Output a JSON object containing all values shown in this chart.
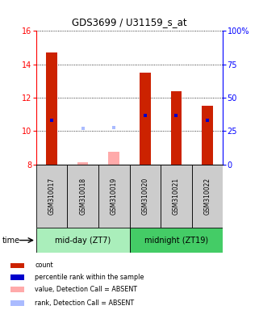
{
  "title": "GDS3699 / U31159_s_at",
  "samples": [
    "GSM310017",
    "GSM310018",
    "GSM310019",
    "GSM310020",
    "GSM310021",
    "GSM310022"
  ],
  "groups": [
    {
      "label": "mid-day (ZT7)",
      "indices": [
        0,
        1,
        2
      ],
      "color": "#AAEEBB"
    },
    {
      "label": "midnight (ZT19)",
      "indices": [
        3,
        4,
        5
      ],
      "color": "#44CC66"
    }
  ],
  "bar_values": [
    14.7,
    null,
    null,
    13.5,
    12.4,
    11.5
  ],
  "bar_absent_values": [
    null,
    8.1,
    8.75,
    null,
    null,
    null
  ],
  "percentile_values": [
    10.65,
    null,
    null,
    10.95,
    10.95,
    10.65
  ],
  "percentile_absent_values": [
    null,
    10.15,
    10.2,
    null,
    null,
    null
  ],
  "bar_color": "#CC2200",
  "bar_absent_color": "#FFAAAA",
  "percentile_color": "#0000CC",
  "percentile_absent_color": "#AABBFF",
  "ylim_left": [
    8,
    16
  ],
  "ylim_right": [
    0,
    100
  ],
  "yticks_left": [
    8,
    10,
    12,
    14,
    16
  ],
  "yticks_right": [
    0,
    25,
    50,
    75,
    100
  ],
  "ytick_labels_right": [
    "0",
    "25",
    "50",
    "75",
    "100%"
  ],
  "label_area_color": "#CCCCCC",
  "time_label": "time",
  "legend_items": [
    {
      "color": "#CC2200",
      "label": "count"
    },
    {
      "color": "#0000CC",
      "label": "percentile rank within the sample"
    },
    {
      "color": "#FFAAAA",
      "label": "value, Detection Call = ABSENT"
    },
    {
      "color": "#AABBFF",
      "label": "rank, Detection Call = ABSENT"
    }
  ]
}
